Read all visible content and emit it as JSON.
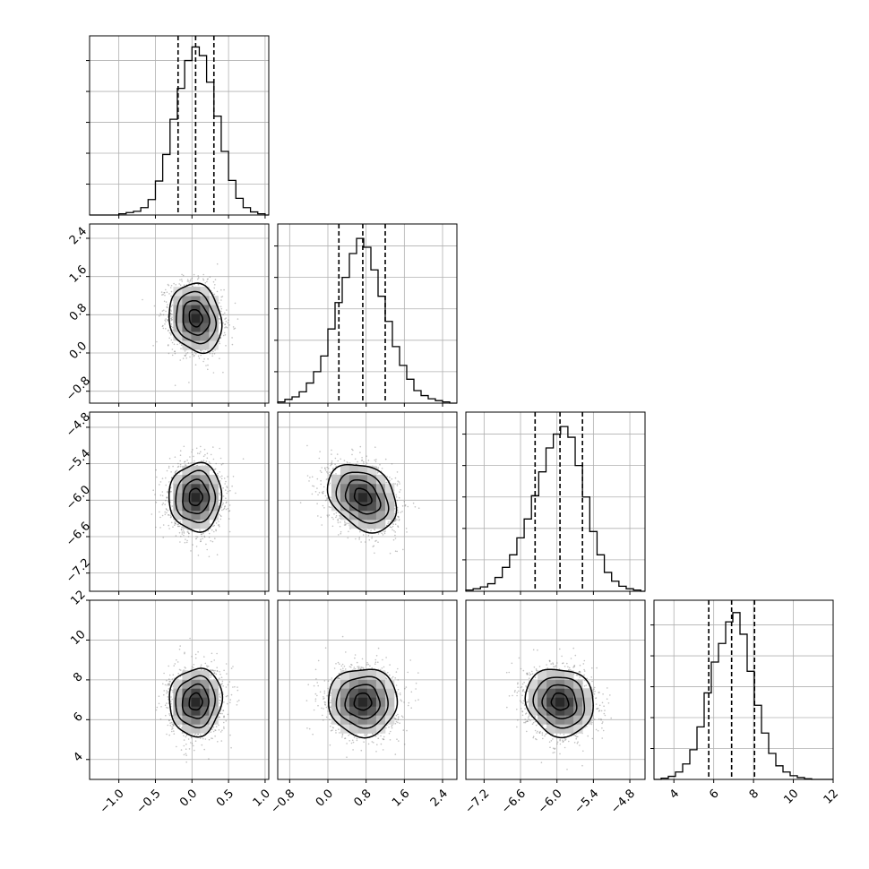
{
  "chart_data": {
    "type": "corner",
    "grid": true,
    "params": [
      {
        "range": [
          -1.4,
          1.05
        ],
        "ticks": [
          -1.0,
          -0.5,
          0.0,
          0.5,
          1.0
        ],
        "tick_labels": [
          "−1.0",
          "−0.5",
          "0.0",
          "0.5",
          "1.0"
        ],
        "quantiles": [
          -0.19,
          0.05,
          0.3
        ]
      },
      {
        "range": [
          -1.05,
          2.7
        ],
        "ticks": [
          -0.8,
          0.0,
          0.8,
          1.6,
          2.4
        ],
        "tick_labels": [
          "−0.8",
          "0.0",
          "0.8",
          "1.6",
          "2.4"
        ],
        "quantiles": [
          0.23,
          0.73,
          1.2
        ]
      },
      {
        "range": [
          -7.5,
          -4.55
        ],
        "ticks": [
          -7.2,
          -6.6,
          -6.0,
          -5.4,
          -4.8
        ],
        "tick_labels": [
          "−7.2",
          "−6.6",
          "−6.0",
          "−5.4",
          "−4.8"
        ],
        "quantiles": [
          -6.36,
          -5.95,
          -5.58
        ]
      },
      {
        "range": [
          3.0,
          12.0
        ],
        "ticks": [
          4,
          6,
          8,
          10,
          12
        ],
        "tick_labels": [
          "4",
          "6",
          "8",
          "10",
          "12"
        ],
        "quantiles": [
          5.75,
          6.9,
          8.05
        ]
      }
    ],
    "histograms": [
      {
        "bin_edges": [
          -1.4,
          -1.3,
          -1.2,
          -1.1,
          -1.0,
          -0.9,
          -0.8,
          -0.7,
          -0.6,
          -0.5,
          -0.4,
          -0.3,
          -0.2,
          -0.1,
          0.0,
          0.1,
          0.2,
          0.3,
          0.4,
          0.5,
          0.6,
          0.7,
          0.8,
          0.9,
          1.0,
          1.05
        ],
        "counts": [
          0,
          0,
          0,
          0,
          2,
          4,
          6,
          12,
          25,
          55,
          98,
          155,
          205,
          250,
          272,
          258,
          215,
          160,
          103,
          56,
          27,
          12,
          5,
          2,
          0
        ],
        "ymax": 290
      },
      {
        "bin_edges": [
          -1.05,
          -0.9,
          -0.75,
          -0.6,
          -0.45,
          -0.3,
          -0.15,
          0.0,
          0.15,
          0.3,
          0.45,
          0.6,
          0.75,
          0.9,
          1.05,
          1.2,
          1.35,
          1.5,
          1.65,
          1.8,
          1.95,
          2.1,
          2.25,
          2.4,
          2.55,
          2.7
        ],
        "counts": [
          2,
          6,
          10,
          18,
          32,
          50,
          75,
          118,
          160,
          200,
          238,
          262,
          248,
          212,
          170,
          130,
          90,
          60,
          38,
          20,
          12,
          7,
          4,
          2,
          0
        ],
        "ymax": 285
      },
      {
        "bin_edges": [
          -7.5,
          -7.38,
          -7.26,
          -7.14,
          -7.02,
          -6.9,
          -6.78,
          -6.66,
          -6.54,
          -6.42,
          -6.3,
          -6.18,
          -6.06,
          -5.94,
          -5.82,
          -5.7,
          -5.58,
          -5.46,
          -5.34,
          -5.22,
          -5.1,
          -4.98,
          -4.86,
          -4.74,
          -4.62,
          -4.55
        ],
        "counts": [
          2,
          4,
          7,
          12,
          22,
          38,
          58,
          85,
          115,
          152,
          190,
          228,
          250,
          262,
          245,
          200,
          150,
          95,
          58,
          30,
          16,
          8,
          4,
          2,
          0
        ],
        "ymax": 285
      },
      {
        "bin_edges": [
          3.0,
          3.36,
          3.72,
          4.08,
          4.44,
          4.8,
          5.16,
          5.52,
          5.88,
          6.24,
          6.6,
          6.96,
          7.32,
          7.68,
          8.04,
          8.4,
          8.76,
          9.12,
          9.48,
          9.84,
          10.2,
          10.56,
          10.92,
          11.28,
          11.64,
          12.0
        ],
        "counts": [
          0,
          2,
          5,
          12,
          25,
          48,
          85,
          140,
          190,
          220,
          255,
          270,
          235,
          175,
          120,
          75,
          42,
          22,
          12,
          6,
          3,
          1,
          0,
          0,
          0
        ],
        "ymax": 290
      }
    ],
    "hist_yticks": [
      50,
      100,
      150,
      200,
      250
    ],
    "pairs": [
      {
        "row": 1,
        "col": 0,
        "mean": [
          0.05,
          0.73
        ],
        "sd": [
          0.18,
          0.36
        ],
        "corr": -0.15
      },
      {
        "row": 2,
        "col": 0,
        "mean": [
          0.05,
          -5.95
        ],
        "sd": [
          0.18,
          0.28
        ],
        "corr": 0.02
      },
      {
        "row": 2,
        "col": 1,
        "mean": [
          0.73,
          -5.95
        ],
        "sd": [
          0.36,
          0.28
        ],
        "corr": -0.3
      },
      {
        "row": 3,
        "col": 0,
        "mean": [
          0.05,
          6.9
        ],
        "sd": [
          0.18,
          0.85
        ],
        "corr": 0.05
      },
      {
        "row": 3,
        "col": 1,
        "mean": [
          0.73,
          6.9
        ],
        "sd": [
          0.36,
          0.85
        ],
        "corr": 0.0
      },
      {
        "row": 3,
        "col": 2,
        "mean": [
          -5.95,
          6.9
        ],
        "sd": [
          0.28,
          0.85
        ],
        "corr": -0.1
      }
    ],
    "contour_levels_sigma": [
      0.5,
      1.0,
      1.5,
      2.0
    ]
  }
}
